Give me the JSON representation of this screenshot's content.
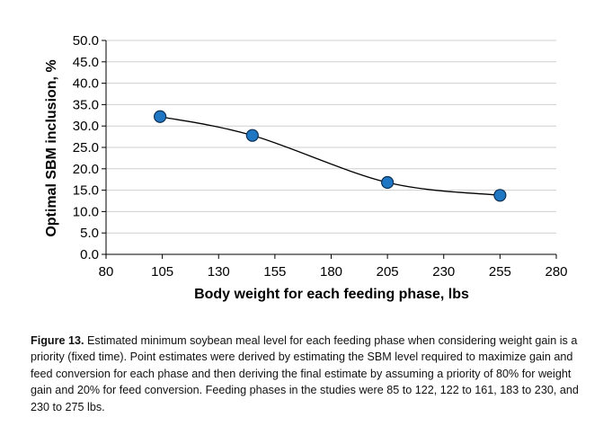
{
  "chart_data": {
    "type": "line",
    "title": "",
    "xlabel": "Body weight for each feeding phase, lbs",
    "ylabel": "Optimal SBM inclusion, %",
    "xlim": [
      80,
      280
    ],
    "ylim": [
      0,
      50
    ],
    "x_ticks": [
      "80",
      "105",
      "130",
      "155",
      "180",
      "205",
      "230",
      "255",
      "280"
    ],
    "y_ticks": [
      "0.0",
      "5.0",
      "10.0",
      "15.0",
      "20.0",
      "25.0",
      "30.0",
      "35.0",
      "40.0",
      "45.0",
      "50.0"
    ],
    "grid": true,
    "legend": "none",
    "series": [
      {
        "x": [
          104,
          145,
          205,
          255
        ],
        "y": [
          32.2,
          27.8,
          16.8,
          13.8
        ],
        "smooth": true,
        "marker": "circle",
        "marker_color": "#1F77C4",
        "line_color": "#000000"
      }
    ]
  },
  "caption": {
    "label": "Figure 13.",
    "text": " Estimated minimum soybean meal level for each feeding phase when considering weight gain is a priority (fixed time). Point estimates were derived by estimating the SBM level required to maximize gain and feed conversion for each phase and then deriving the final estimate by assuming a priority of 80% for weight gain and 20% for feed conversion. Feeding phases in the studies were 85 to 122, 122 to 161, 183 to 230, and 230 to 275 lbs."
  }
}
